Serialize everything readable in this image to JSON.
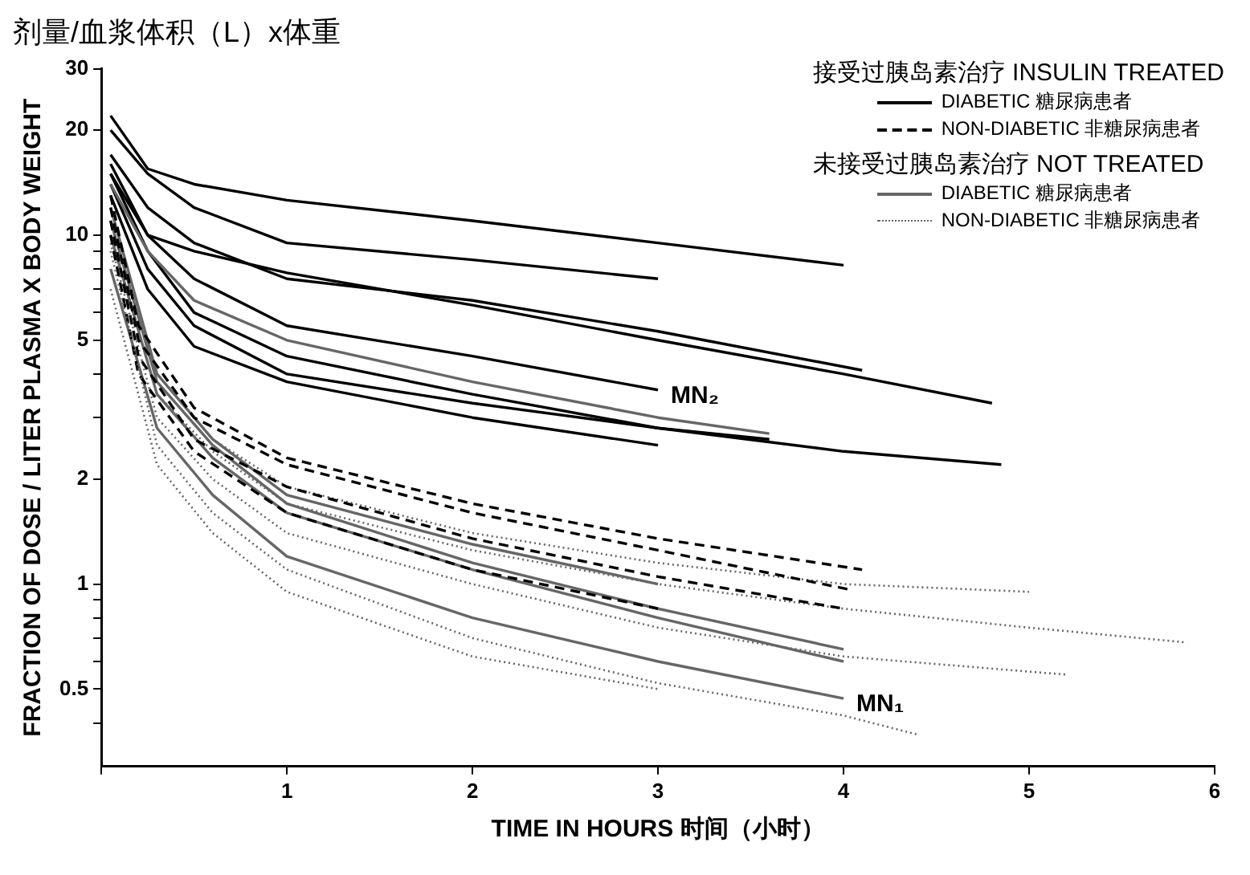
{
  "chart_data": {
    "type": "line",
    "title": "剂量/血浆体积（L）x体重",
    "xlabel": "TIME IN HOURS 时间（小时）",
    "ylabel": "FRACTION OF DOSE / LITER PLASMA X BODY WEIGHT",
    "log": "y",
    "grid": false,
    "legend": "top right",
    "marker": "none",
    "xlim": [
      0,
      6
    ],
    "xticks": [
      {
        "value": 0,
        "label": null
      },
      1,
      2,
      3,
      4,
      5,
      6
    ],
    "ylim": [
      0.3,
      30
    ],
    "yticks": [
      {
        "value": 0.4,
        "label": null
      },
      0.5,
      {
        "value": 0.6,
        "label": null
      },
      {
        "value": 0.7,
        "label": null
      },
      {
        "value": 0.8,
        "label": null
      },
      {
        "value": 0.9,
        "label": null
      },
      1,
      2,
      {
        "value": 3,
        "label": null
      },
      {
        "value": 4,
        "label": null
      },
      5,
      {
        "value": 6,
        "label": null
      },
      {
        "value": 7,
        "label": null
      },
      {
        "value": 8,
        "label": null
      },
      {
        "value": 9,
        "label": null
      },
      10,
      20,
      30
    ],
    "annotations": [
      {
        "text": "MN₂",
        "x": 3,
        "y": 3.6
      },
      {
        "text": "MN₁",
        "x": 4,
        "y": 0.47
      },
      "接受过胰岛素治疗 INSULIN TREATED",
      "未接受过胰岛素治疗 NOT TREATED"
    ],
    "series": [
      {
        "name": "DIABETIC 糖尿病患者",
        "color": "#000000",
        "line_style": "solid",
        "x": [
          0.05,
          0.25,
          0.5,
          1,
          2,
          3,
          4
        ],
        "values": [
          22,
          15.5,
          14,
          12.6,
          11,
          9.5,
          8.2
        ]
      },
      {
        "name": "NON-DIABETIC 非糖尿病患者",
        "color": "#000000",
        "line_style": "dashed",
        "x": [
          0.05,
          0.2,
          0.5,
          1,
          2,
          3,
          4.05
        ],
        "values": [
          12,
          5,
          3,
          2.2,
          1.6,
          1.25,
          0.96
        ]
      },
      {
        "name": "DIABETIC 糖尿病患者",
        "color": "#666666",
        "line_style": "solid",
        "x": [
          0.05,
          0.25,
          0.5,
          1,
          2,
          3,
          3.6
        ],
        "values": [
          14,
          9,
          6.5,
          5,
          3.8,
          3,
          2.7
        ]
      },
      {
        "name": "NON-DIABETIC 非糖尿病患者",
        "color": "#666666",
        "line_style": "dotted",
        "x": [
          0.05,
          0.3,
          0.6,
          1,
          2,
          3,
          4,
          4.4
        ],
        "values": [
          9,
          2.5,
          1.6,
          1.1,
          0.7,
          0.52,
          0.42,
          0.37
        ]
      },
      {
        "color": "#000000",
        "line_style": "solid",
        "x": [
          0.05,
          0.25,
          0.5,
          1,
          2,
          3
        ],
        "values": [
          20,
          15,
          12,
          9.5,
          8.5,
          7.5
        ]
      },
      {
        "color": "#000000",
        "line_style": "solid",
        "x": [
          0.05,
          0.25,
          0.5,
          1,
          2,
          3,
          4.1
        ],
        "values": [
          17,
          12,
          9.5,
          7.5,
          6.5,
          5.3,
          4.1
        ]
      },
      {
        "color": "#000000",
        "line_style": "solid",
        "x": [
          0.05,
          0.25,
          0.5,
          1,
          2,
          3,
          4,
          4.8
        ],
        "values": [
          16,
          10,
          9,
          7.8,
          6.3,
          5,
          4,
          3.3
        ]
      },
      {
        "color": "#000000",
        "line_style": "solid",
        "x": [
          0.05,
          0.25,
          0.5,
          1,
          2,
          3
        ],
        "values": [
          15,
          10,
          7.5,
          5.5,
          4.5,
          3.6
        ]
      },
      {
        "color": "#000000",
        "line_style": "solid",
        "x": [
          0.05,
          0.25,
          0.5,
          1,
          2,
          3,
          3.6
        ],
        "values": [
          14,
          8,
          5.5,
          4,
          3.3,
          2.8,
          2.6
        ]
      },
      {
        "color": "#000000",
        "line_style": "solid",
        "x": [
          0.05,
          0.25,
          0.5,
          1,
          2,
          3
        ],
        "values": [
          13,
          7,
          4.8,
          3.8,
          3,
          2.5
        ]
      },
      {
        "color": "#000000",
        "line_style": "solid",
        "x": [
          0.05,
          0.25,
          0.5,
          1,
          2,
          3,
          4,
          4.85
        ],
        "values": [
          15,
          9,
          6,
          4.5,
          3.5,
          2.8,
          2.4,
          2.2
        ]
      },
      {
        "color": "#000000",
        "line_style": "dashed",
        "x": [
          0.05,
          0.2,
          0.5,
          1,
          2,
          3,
          4
        ],
        "values": [
          11,
          4.5,
          2.6,
          1.9,
          1.35,
          1.05,
          0.85
        ]
      },
      {
        "color": "#000000",
        "line_style": "dashed",
        "x": [
          0.05,
          0.2,
          0.5,
          1,
          2,
          3
        ],
        "values": [
          10,
          4,
          2.4,
          1.6,
          1.1,
          0.85
        ]
      },
      {
        "color": "#000000",
        "line_style": "dashed",
        "x": [
          0.05,
          0.2,
          0.5,
          1,
          2,
          3,
          4.1
        ],
        "values": [
          13,
          5.5,
          3.2,
          2.3,
          1.7,
          1.35,
          1.1
        ]
      },
      {
        "color": "#666666",
        "line_style": "solid",
        "x": [
          0.05,
          0.3,
          0.6,
          1,
          2,
          3,
          4
        ],
        "values": [
          10,
          3.5,
          2.3,
          1.6,
          1.1,
          0.8,
          0.6
        ]
      },
      {
        "color": "#666666",
        "line_style": "solid",
        "x": [
          0.05,
          0.3,
          0.6,
          1,
          2,
          3,
          4
        ],
        "values": [
          8,
          2.8,
          1.8,
          1.2,
          0.8,
          0.6,
          0.47
        ]
      },
      {
        "color": "#666666",
        "line_style": "solid",
        "x": [
          0.05,
          0.3,
          0.6,
          1,
          2,
          3
        ],
        "values": [
          12,
          4,
          2.6,
          1.8,
          1.3,
          1
        ]
      },
      {
        "color": "#666666",
        "line_style": "solid",
        "x": [
          0.05,
          0.3,
          0.6,
          1,
          2,
          3,
          4
        ],
        "values": [
          11,
          3.8,
          2.5,
          1.7,
          1.15,
          0.85,
          0.65
        ]
      },
      {
        "color": "#666666",
        "line_style": "dotted",
        "x": [
          0.05,
          0.3,
          0.6,
          1,
          2,
          3,
          4,
          5,
          5.85
        ],
        "values": [
          10,
          3.5,
          2.4,
          1.7,
          1.25,
          1,
          0.85,
          0.75,
          0.68
        ]
      },
      {
        "color": "#666666",
        "line_style": "dotted",
        "x": [
          0.05,
          0.3,
          0.6,
          1,
          2,
          3,
          4,
          5
        ],
        "values": [
          11,
          4,
          2.6,
          1.9,
          1.4,
          1.15,
          1,
          0.95
        ]
      },
      {
        "color": "#666666",
        "line_style": "dotted",
        "x": [
          0.05,
          0.3,
          0.6,
          1,
          2,
          3,
          4,
          5.2
        ],
        "values": [
          9.5,
          3,
          2,
          1.4,
          1,
          0.75,
          0.62,
          0.55
        ]
      },
      {
        "color": "#666666",
        "line_style": "dotted",
        "x": [
          0.05,
          0.3,
          0.6,
          1,
          2,
          3
        ],
        "values": [
          7,
          2.2,
          1.4,
          0.95,
          0.62,
          0.5
        ]
      }
    ]
  }
}
